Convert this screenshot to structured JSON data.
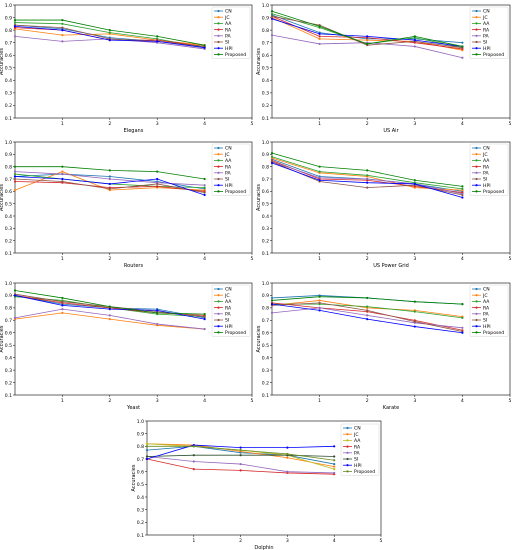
{
  "chart_data": [
    {
      "type": "line",
      "xlabel": "Elegans",
      "ylabel": "Accuracies",
      "xlim": [
        0,
        5
      ],
      "ylim": [
        0.1,
        1.0
      ],
      "xticks": [
        "1",
        "2",
        "3",
        "4",
        "5"
      ],
      "yticks": [
        "0.1",
        "0.2",
        "0.3",
        "0.4",
        "0.5",
        "0.6",
        "0.7",
        "0.8",
        "0.9",
        "1.0"
      ],
      "legend_position": "right",
      "x": [
        0,
        1,
        2,
        3,
        4
      ],
      "series": [
        {
          "name": "CN",
          "color": "#1f77b4",
          "values": [
            0.84,
            0.81,
            0.74,
            0.71,
            0.67
          ]
        },
        {
          "name": "JC",
          "color": "#ff7f0e",
          "values": [
            0.81,
            0.76,
            0.77,
            0.72,
            0.68
          ]
        },
        {
          "name": "AA",
          "color": "#2ca02c",
          "values": [
            0.86,
            0.85,
            0.78,
            0.73,
            0.66
          ]
        },
        {
          "name": "RA",
          "color": "#d62728",
          "values": [
            0.82,
            0.8,
            0.72,
            0.72,
            0.67
          ]
        },
        {
          "name": "PA",
          "color": "#9467bd",
          "values": [
            0.75,
            0.71,
            0.73,
            0.7,
            0.65
          ]
        },
        {
          "name": "SI",
          "color": "#8c564b",
          "values": [
            0.84,
            0.82,
            0.73,
            0.71,
            0.67
          ]
        },
        {
          "name": "HPI",
          "color": "#0000ff",
          "values": [
            0.83,
            0.8,
            0.72,
            0.71,
            0.66
          ]
        },
        {
          "name": "Proposed",
          "color": "#008000",
          "values": [
            0.88,
            0.88,
            0.8,
            0.75,
            0.68
          ]
        }
      ]
    },
    {
      "type": "line",
      "xlabel": "US Air",
      "ylabel": "Accuracies",
      "xlim": [
        0,
        5
      ],
      "ylim": [
        0.1,
        1.0
      ],
      "xticks": [
        "1",
        "2",
        "3",
        "4",
        "5"
      ],
      "yticks": [
        "0.1",
        "0.2",
        "0.3",
        "0.4",
        "0.5",
        "0.6",
        "0.7",
        "0.8",
        "0.9",
        "1.0"
      ],
      "legend_position": "right",
      "x": [
        0,
        1,
        2,
        3,
        4
      ],
      "series": [
        {
          "name": "CN",
          "color": "#1f77b4",
          "values": [
            0.92,
            0.78,
            0.73,
            0.73,
            0.7
          ]
        },
        {
          "name": "JC",
          "color": "#ff7f0e",
          "values": [
            0.9,
            0.73,
            0.72,
            0.71,
            0.64
          ]
        },
        {
          "name": "AA",
          "color": "#2ca02c",
          "values": [
            0.93,
            0.82,
            0.69,
            0.74,
            0.66
          ]
        },
        {
          "name": "RA",
          "color": "#d62728",
          "values": [
            0.91,
            0.75,
            0.74,
            0.7,
            0.65
          ]
        },
        {
          "name": "PA",
          "color": "#9467bd",
          "values": [
            0.76,
            0.69,
            0.7,
            0.67,
            0.58
          ]
        },
        {
          "name": "SI",
          "color": "#8c564b",
          "values": [
            0.91,
            0.84,
            0.68,
            0.71,
            0.66
          ]
        },
        {
          "name": "HPI",
          "color": "#0000ff",
          "values": [
            0.89,
            0.77,
            0.75,
            0.72,
            0.67
          ]
        },
        {
          "name": "Proposed",
          "color": "#008000",
          "values": [
            0.95,
            0.83,
            0.69,
            0.75,
            0.67
          ]
        }
      ]
    },
    {
      "type": "line",
      "xlabel": "Routers",
      "ylabel": "Accuracies",
      "xlim": [
        0,
        5
      ],
      "ylim": [
        0.1,
        1.0
      ],
      "xticks": [
        "1",
        "2",
        "3",
        "4",
        "5"
      ],
      "yticks": [
        "0.1",
        "0.2",
        "0.3",
        "0.4",
        "0.5",
        "0.6",
        "0.7",
        "0.8",
        "0.9",
        "1.0"
      ],
      "legend_position": "right",
      "x": [
        0,
        1,
        2,
        3,
        4
      ],
      "series": [
        {
          "name": "CN",
          "color": "#1f77b4",
          "values": [
            0.72,
            0.74,
            0.72,
            0.68,
            0.62
          ]
        },
        {
          "name": "JC",
          "color": "#ff7f0e",
          "values": [
            0.61,
            0.76,
            0.61,
            0.63,
            0.61
          ]
        },
        {
          "name": "AA",
          "color": "#2ca02c",
          "values": [
            0.74,
            0.7,
            0.66,
            0.64,
            0.63
          ]
        },
        {
          "name": "RA",
          "color": "#d62728",
          "values": [
            0.68,
            0.67,
            0.63,
            0.64,
            0.6
          ]
        },
        {
          "name": "PA",
          "color": "#9467bd",
          "values": [
            0.76,
            0.74,
            0.7,
            0.67,
            0.65
          ]
        },
        {
          "name": "SI",
          "color": "#8c564b",
          "values": [
            0.7,
            0.68,
            0.62,
            0.66,
            0.59
          ]
        },
        {
          "name": "HPI",
          "color": "#0000ff",
          "values": [
            0.72,
            0.7,
            0.66,
            0.7,
            0.57
          ]
        },
        {
          "name": "Proposed",
          "color": "#008000",
          "values": [
            0.8,
            0.8,
            0.77,
            0.76,
            0.7
          ]
        }
      ]
    },
    {
      "type": "line",
      "xlabel": "US Power Grid",
      "ylabel": "Accuracies",
      "xlim": [
        0,
        5
      ],
      "ylim": [
        0.1,
        1.0
      ],
      "xticks": [
        "1",
        "2",
        "3",
        "4",
        "5"
      ],
      "yticks": [
        "0.1",
        "0.2",
        "0.3",
        "0.4",
        "0.5",
        "0.6",
        "0.7",
        "0.8",
        "0.9",
        "1.0"
      ],
      "legend_position": "right",
      "x": [
        0,
        1,
        2,
        3,
        4
      ],
      "series": [
        {
          "name": "CN",
          "color": "#1f77b4",
          "values": [
            0.86,
            0.72,
            0.7,
            0.66,
            0.6
          ]
        },
        {
          "name": "JC",
          "color": "#ff7f0e",
          "values": [
            0.87,
            0.75,
            0.72,
            0.63,
            0.61
          ]
        },
        {
          "name": "AA",
          "color": "#2ca02c",
          "values": [
            0.88,
            0.76,
            0.73,
            0.67,
            0.62
          ]
        },
        {
          "name": "RA",
          "color": "#d62728",
          "values": [
            0.85,
            0.7,
            0.69,
            0.64,
            0.59
          ]
        },
        {
          "name": "PA",
          "color": "#9467bd",
          "values": [
            0.84,
            0.71,
            0.7,
            0.66,
            0.58
          ]
        },
        {
          "name": "SI",
          "color": "#8c564b",
          "values": [
            0.84,
            0.68,
            0.63,
            0.65,
            0.57
          ]
        },
        {
          "name": "HPI",
          "color": "#0000ff",
          "values": [
            0.83,
            0.69,
            0.67,
            0.66,
            0.55
          ]
        },
        {
          "name": "Proposed",
          "color": "#008000",
          "values": [
            0.91,
            0.8,
            0.77,
            0.69,
            0.64
          ]
        }
      ]
    },
    {
      "type": "line",
      "xlabel": "Yeast",
      "ylabel": "Accuracies",
      "xlim": [
        0,
        5
      ],
      "ylim": [
        0.1,
        1.0
      ],
      "xticks": [
        "1",
        "2",
        "3",
        "4",
        "5"
      ],
      "yticks": [
        "0.1",
        "0.2",
        "0.3",
        "0.4",
        "0.5",
        "0.6",
        "0.7",
        "0.8",
        "0.9",
        "1.0"
      ],
      "legend_position": "right",
      "x": [
        0,
        1,
        2,
        3,
        4
      ],
      "series": [
        {
          "name": "CN",
          "color": "#1f77b4",
          "values": [
            0.9,
            0.83,
            0.8,
            0.79,
            0.72
          ]
        },
        {
          "name": "JC",
          "color": "#ff7f0e",
          "values": [
            0.71,
            0.76,
            0.71,
            0.66,
            0.63
          ]
        },
        {
          "name": "AA",
          "color": "#2ca02c",
          "values": [
            0.89,
            0.86,
            0.8,
            0.75,
            0.73
          ]
        },
        {
          "name": "RA",
          "color": "#d62728",
          "values": [
            0.9,
            0.84,
            0.8,
            0.76,
            0.74
          ]
        },
        {
          "name": "PA",
          "color": "#9467bd",
          "values": [
            0.72,
            0.79,
            0.74,
            0.67,
            0.63
          ]
        },
        {
          "name": "SI",
          "color": "#8c564b",
          "values": [
            0.91,
            0.85,
            0.81,
            0.77,
            0.73
          ]
        },
        {
          "name": "HPI",
          "color": "#0000ff",
          "values": [
            0.9,
            0.82,
            0.79,
            0.78,
            0.71
          ]
        },
        {
          "name": "Proposed",
          "color": "#008000",
          "values": [
            0.94,
            0.88,
            0.81,
            0.76,
            0.75
          ]
        }
      ]
    },
    {
      "type": "line",
      "xlabel": "Karate",
      "ylabel": "Accuracies",
      "xlim": [
        0,
        5
      ],
      "ylim": [
        0.1,
        1.0
      ],
      "xticks": [
        "1",
        "2",
        "3",
        "4",
        "5"
      ],
      "yticks": [
        "0.1",
        "0.2",
        "0.3",
        "0.4",
        "0.5",
        "0.6",
        "0.7",
        "0.8",
        "0.9",
        "1.0"
      ],
      "legend_position": "right",
      "x": [
        0,
        1,
        2,
        3,
        4
      ],
      "series": [
        {
          "name": "CN",
          "color": "#1f77b4",
          "values": [
            0.88,
            0.9,
            0.88,
            0.85,
            0.83
          ]
        },
        {
          "name": "JC",
          "color": "#ff7f0e",
          "values": [
            0.82,
            0.86,
            0.8,
            0.78,
            0.73
          ]
        },
        {
          "name": "AA",
          "color": "#2ca02c",
          "values": [
            0.83,
            0.83,
            0.81,
            0.77,
            0.72
          ]
        },
        {
          "name": "RA",
          "color": "#d62728",
          "values": [
            0.84,
            0.8,
            0.77,
            0.7,
            0.62
          ]
        },
        {
          "name": "PA",
          "color": "#9467bd",
          "values": [
            0.76,
            0.8,
            0.74,
            0.68,
            0.64
          ]
        },
        {
          "name": "SI",
          "color": "#8c564b",
          "values": [
            0.82,
            0.84,
            0.78,
            0.69,
            0.61
          ]
        },
        {
          "name": "HPI",
          "color": "#0000ff",
          "values": [
            0.83,
            0.78,
            0.71,
            0.65,
            0.6
          ]
        },
        {
          "name": "Proposed",
          "color": "#008000",
          "values": [
            0.86,
            0.89,
            0.88,
            0.85,
            0.83
          ]
        }
      ]
    },
    {
      "type": "line",
      "xlabel": "Dolphin",
      "ylabel": "Accuracies",
      "xlim": [
        0,
        5
      ],
      "ylim": [
        0.1,
        1.0
      ],
      "xticks": [
        "1",
        "2",
        "3",
        "4",
        "5"
      ],
      "yticks": [
        "0.1",
        "0.2",
        "0.3",
        "0.4",
        "0.5",
        "0.6",
        "0.7",
        "0.8",
        "0.9",
        "1.0"
      ],
      "legend_position": "right",
      "x": [
        0,
        1,
        2,
        3,
        4
      ],
      "series": [
        {
          "name": "CN",
          "color": "#1f77b4",
          "values": [
            0.77,
            0.8,
            0.75,
            0.73,
            0.66
          ]
        },
        {
          "name": "JC",
          "color": "#ff7f0e",
          "values": [
            0.82,
            0.81,
            0.76,
            0.71,
            0.64
          ]
        },
        {
          "name": "AA",
          "color": "#bcbd22",
          "values": [
            0.82,
            0.8,
            0.77,
            0.73,
            0.62
          ]
        },
        {
          "name": "RA",
          "color": "#d62728",
          "values": [
            0.7,
            0.62,
            0.61,
            0.59,
            0.58
          ]
        },
        {
          "name": "PA",
          "color": "#9467bd",
          "values": [
            0.72,
            0.68,
            0.66,
            0.6,
            0.59
          ]
        },
        {
          "name": "SI",
          "color": "#2f4f2f",
          "values": [
            0.72,
            0.73,
            0.73,
            0.73,
            0.72
          ]
        },
        {
          "name": "HPI",
          "color": "#0000ff",
          "values": [
            0.7,
            0.81,
            0.79,
            0.79,
            0.8
          ]
        },
        {
          "name": "Proposed",
          "color": "#6b8e23",
          "values": [
            0.8,
            0.8,
            0.77,
            0.74,
            0.69
          ]
        }
      ]
    }
  ]
}
